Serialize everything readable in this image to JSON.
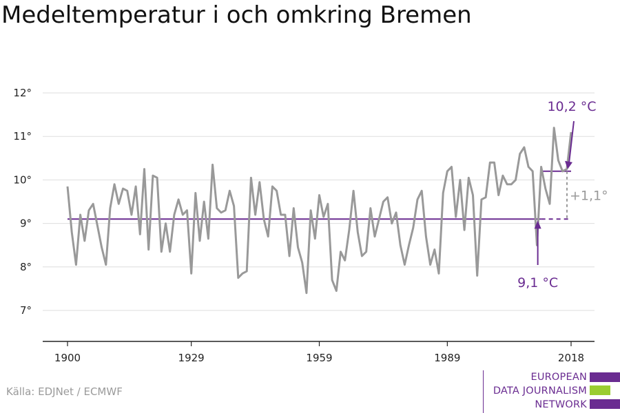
{
  "title": "Medeltemperatur i och omkring Bremen",
  "source": "Källa: EDJNet / ECMWF",
  "logo": {
    "lines": [
      "EUROPEAN",
      "DATA JOURNALISM",
      "NETWORK"
    ],
    "colors": [
      "#6a2c91",
      "#9acd32",
      "#6a2c91"
    ]
  },
  "chart_data": {
    "type": "line",
    "title": "Medeltemperatur i och omkring Bremen",
    "xlabel": "",
    "ylabel": "",
    "xlim": [
      1900,
      2018
    ],
    "ylim": [
      7,
      12
    ],
    "grid": true,
    "x_ticks": [
      1900,
      1929,
      1959,
      1989,
      2018
    ],
    "x_tick_labels": [
      "1900",
      "1929",
      "1959",
      "1989",
      "2018"
    ],
    "y_ticks": [
      7,
      8,
      9,
      10,
      11,
      12
    ],
    "y_tick_labels": [
      "7°",
      "8°",
      "9°",
      "10°",
      "11°",
      "12°"
    ],
    "series": [
      {
        "color": "#999999",
        "x": [
          1900,
          1901,
          1902,
          1903,
          1904,
          1905,
          1906,
          1907,
          1908,
          1909,
          1910,
          1911,
          1912,
          1913,
          1914,
          1915,
          1916,
          1917,
          1918,
          1919,
          1920,
          1921,
          1922,
          1923,
          1924,
          1925,
          1926,
          1927,
          1928,
          1929,
          1930,
          1931,
          1932,
          1933,
          1934,
          1935,
          1936,
          1937,
          1938,
          1939,
          1940,
          1941,
          1942,
          1943,
          1944,
          1945,
          1946,
          1947,
          1948,
          1949,
          1950,
          1951,
          1952,
          1953,
          1954,
          1955,
          1956,
          1957,
          1958,
          1959,
          1960,
          1961,
          1962,
          1963,
          1964,
          1965,
          1966,
          1967,
          1968,
          1969,
          1970,
          1971,
          1972,
          1973,
          1974,
          1975,
          1976,
          1977,
          1978,
          1979,
          1980,
          1981,
          1982,
          1983,
          1984,
          1985,
          1986,
          1987,
          1988,
          1989,
          1990,
          1991,
          1992,
          1993,
          1994,
          1995,
          1996,
          1997,
          1998,
          1999,
          2000,
          2001,
          2002,
          2003,
          2004,
          2005,
          2006,
          2007,
          2008,
          2009,
          2010,
          2011,
          2012,
          2013,
          2014,
          2015,
          2016,
          2017,
          2018
        ],
        "values": [
          9.85,
          8.8,
          8.05,
          9.2,
          8.6,
          9.3,
          9.45,
          8.95,
          8.45,
          8.05,
          9.35,
          9.9,
          9.45,
          9.8,
          9.75,
          9.2,
          9.85,
          8.75,
          10.25,
          8.4,
          10.1,
          10.05,
          8.35,
          9.0,
          8.35,
          9.2,
          9.55,
          9.2,
          9.3,
          7.85,
          9.7,
          8.6,
          9.5,
          8.65,
          10.35,
          9.35,
          9.25,
          9.3,
          9.75,
          9.4,
          7.75,
          7.85,
          7.9,
          10.05,
          9.2,
          9.95,
          9.1,
          8.7,
          9.85,
          9.75,
          9.2,
          9.2,
          8.25,
          9.35,
          8.45,
          8.1,
          7.4,
          9.3,
          8.65,
          9.65,
          9.15,
          9.45,
          7.7,
          7.45,
          8.35,
          8.15,
          8.85,
          9.75,
          8.8,
          8.25,
          8.35,
          9.35,
          8.7,
          9.1,
          9.5,
          9.6,
          9.0,
          9.25,
          8.5,
          8.05,
          8.5,
          8.9,
          9.55,
          9.75,
          8.7,
          8.05,
          8.4,
          7.85,
          9.7,
          10.2,
          10.3,
          9.15,
          10.0,
          8.85,
          10.05,
          9.65,
          7.8,
          9.55,
          9.6,
          10.4,
          10.4,
          9.65,
          10.1,
          9.9,
          9.9,
          10.0,
          10.6,
          10.75,
          10.3,
          10.2,
          8.5,
          10.3,
          9.8,
          9.45,
          11.2,
          10.45,
          10.2,
          10.25,
          11.1
        ]
      }
    ],
    "reference_lines": [
      {
        "value": 9.1,
        "from": 1900,
        "to": 2018,
        "color": "#6a2c91",
        "style": "solid-then-dashed",
        "label": "9,1 °C",
        "label_year": 2011
      },
      {
        "value": 10.2,
        "from": 2011,
        "to": 2018,
        "color": "#6a2c91",
        "style": "solid",
        "label": "10,2 °C",
        "label_year": 2018
      }
    ],
    "difference": {
      "label": "+1,1°",
      "color": "#999999"
    }
  }
}
